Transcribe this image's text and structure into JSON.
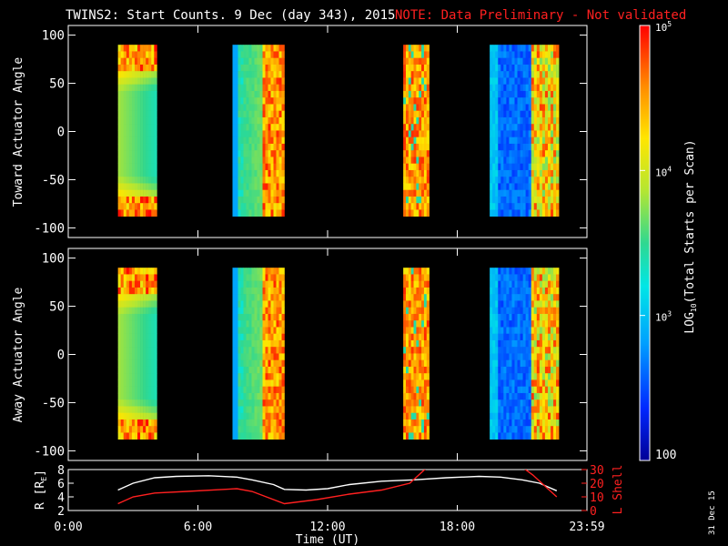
{
  "title": {
    "main": "TWINS2: Start Counts.  9 Dec (day 343), 2015",
    "note": "NOTE: Data Preliminary - Not validated"
  },
  "colors": {
    "note": "#ff2020",
    "lshell": "#ff2020",
    "radius": "#ffffff",
    "background": "#000000",
    "frame": "#ffffff"
  },
  "footer": {
    "date_stamp": "31 Dec 15"
  },
  "chart_data": [
    {
      "type": "heatmap",
      "name": "toward",
      "ylabel": "Toward Actuator Angle",
      "ylim": [
        -110,
        110
      ],
      "yticks": [
        100,
        50,
        0,
        -50,
        -100
      ],
      "xlim": [
        0,
        24
      ],
      "coverage_hours": [
        [
          2.3,
          4.1
        ],
        [
          7.6,
          10.0
        ],
        [
          15.5,
          16.7
        ],
        [
          19.5,
          22.7
        ]
      ],
      "angle_range": [
        -88,
        90
      ],
      "segment_profiles": [
        "edge-high",
        "mixed",
        "high",
        "low-center"
      ]
    },
    {
      "type": "heatmap",
      "name": "away",
      "ylabel": "Away Actuator Angle",
      "ylim": [
        -110,
        110
      ],
      "yticks": [
        100,
        50,
        0,
        -50,
        -100
      ],
      "xlim": [
        0,
        24
      ],
      "coverage_hours": [
        [
          2.3,
          4.1
        ],
        [
          7.6,
          10.0
        ],
        [
          15.5,
          16.7
        ],
        [
          19.5,
          22.7
        ]
      ],
      "angle_range": [
        -88,
        90
      ],
      "segment_profiles": [
        "edge-high",
        "mixed",
        "high",
        "low-center"
      ]
    },
    {
      "type": "line",
      "name": "orbit",
      "ylabel": "R [R",
      "ylabel_sub": "E",
      "ylabel_end": "]",
      "ylim": [
        2,
        8
      ],
      "yticks": [
        8,
        6,
        4,
        2
      ],
      "y2label": "L Shell",
      "y2lim": [
        0,
        30
      ],
      "y2ticks": [
        30,
        20,
        10,
        0
      ],
      "xlabel": "Time (UT)",
      "xlim": [
        0,
        24
      ],
      "xtick_labels": [
        "0:00",
        "6:00",
        "12:00",
        "18:00",
        "23:59"
      ],
      "xtick_values": [
        0,
        6,
        12,
        18,
        24
      ],
      "series": [
        {
          "name": "R",
          "axis": "left",
          "x": [
            2.3,
            3.0,
            4.0,
            5.0,
            6.5,
            7.8,
            8.5,
            9.5,
            10.0,
            11.0,
            12.0,
            13.0,
            14.5,
            16.0,
            17.5,
            19.0,
            20.0,
            21.0,
            21.8,
            22.6
          ],
          "y": [
            5.0,
            6.0,
            6.8,
            7.0,
            7.1,
            6.9,
            6.5,
            5.8,
            5.1,
            5.0,
            5.2,
            5.8,
            6.3,
            6.5,
            6.8,
            7.0,
            6.9,
            6.5,
            6.0,
            4.9
          ]
        },
        {
          "name": "L Shell",
          "axis": "right",
          "x": [
            2.3,
            3.0,
            4.0,
            5.5,
            7.8,
            8.5,
            10.0,
            11.5,
            13.0,
            14.5,
            15.8,
            16.7,
            20.9,
            21.5,
            22.6
          ],
          "y": [
            5.0,
            10.0,
            12.8,
            14.0,
            16.0,
            14.0,
            5.0,
            8.0,
            12.0,
            15.0,
            20.0,
            33.0,
            33.0,
            26.0,
            10.0
          ]
        }
      ]
    }
  ],
  "colorbar": {
    "label": "LOG",
    "label_sub": "10",
    "label_end": "(Total Starts per Scan)",
    "tick_bases": [
      "10",
      "10",
      "10"
    ],
    "tick_exps": [
      "5",
      "4",
      "3"
    ],
    "tick_values": [
      100000,
      10000,
      1000
    ],
    "bottom_label": "100",
    "range": [
      100,
      100000
    ]
  }
}
